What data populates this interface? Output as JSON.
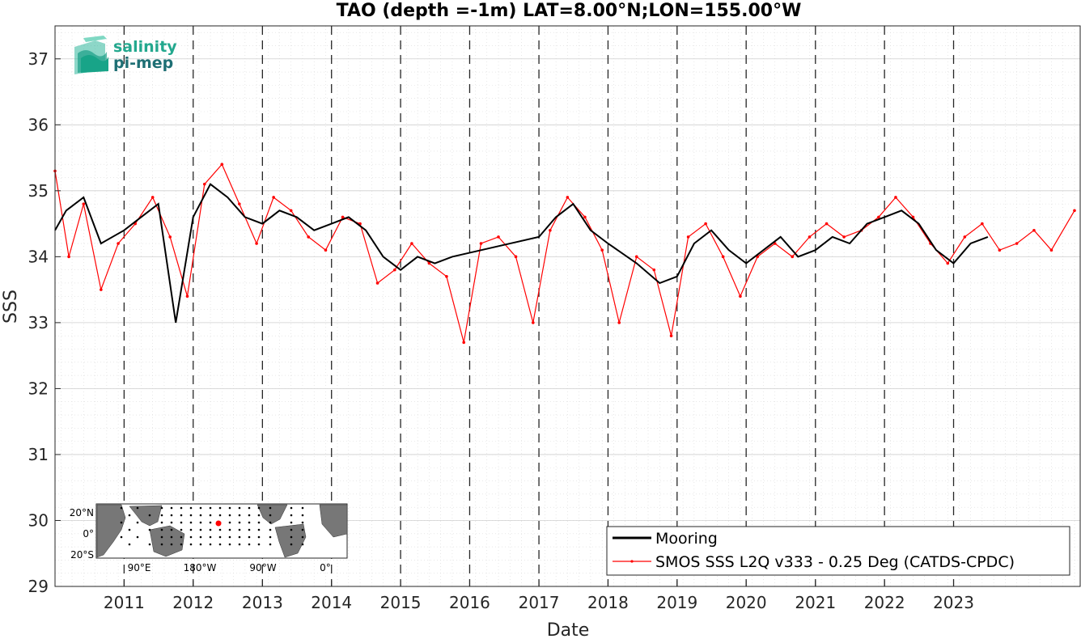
{
  "chart_data": {
    "type": "line",
    "title": "TAO (depth =-1m) LAT=8.00°N;LON=155.00°W",
    "xlabel": "Date",
    "ylabel": "SSS",
    "xlim": [
      "2010-01-01",
      "2024-10-31"
    ],
    "ylim": [
      29,
      37.5
    ],
    "x_ticks": [
      "2011",
      "2012",
      "2013",
      "2014",
      "2015",
      "2016",
      "2017",
      "2018",
      "2019",
      "2020",
      "2021",
      "2022",
      "2023"
    ],
    "y_ticks": [
      29,
      30,
      31,
      32,
      33,
      34,
      35,
      36,
      37
    ],
    "grid": true,
    "year_boundary_lines": "dashed",
    "legend_position": "bottom-right",
    "series": [
      {
        "name": "Mooring",
        "color": "#000000",
        "values": [
          [
            "2010-01-01",
            34.4
          ],
          [
            "2010-03-01",
            34.7
          ],
          [
            "2010-06-01",
            34.9
          ],
          [
            "2010-09-01",
            34.2
          ],
          [
            "2011-01-01",
            34.4
          ],
          [
            "2011-04-01",
            34.6
          ],
          [
            "2011-07-01",
            34.8
          ],
          [
            "2011-10-01",
            33.0
          ],
          [
            "2012-01-01",
            34.6
          ],
          [
            "2012-04-01",
            35.1
          ],
          [
            "2012-07-01",
            34.9
          ],
          [
            "2012-10-01",
            34.6
          ],
          [
            "2013-01-01",
            34.5
          ],
          [
            "2013-04-01",
            34.7
          ],
          [
            "2013-07-01",
            34.6
          ],
          [
            "2013-10-01",
            34.4
          ],
          [
            "2014-01-01",
            34.5
          ],
          [
            "2014-04-01",
            34.6
          ],
          [
            "2014-07-01",
            34.4
          ],
          [
            "2014-10-01",
            34.0
          ],
          [
            "2015-01-01",
            33.8
          ],
          [
            "2015-04-01",
            34.0
          ],
          [
            "2015-07-01",
            33.9
          ],
          [
            "2015-10-01",
            34.0
          ],
          [
            "2017-01-01",
            34.3
          ],
          [
            "2017-04-01",
            34.6
          ],
          [
            "2017-07-01",
            34.8
          ],
          [
            "2017-10-01",
            34.4
          ],
          [
            "2018-01-01",
            34.2
          ],
          [
            "2018-06-01",
            33.9
          ],
          [
            "2018-10-01",
            33.6
          ],
          [
            "2019-01-01",
            33.7
          ],
          [
            "2019-04-01",
            34.2
          ],
          [
            "2019-07-01",
            34.4
          ],
          [
            "2019-10-01",
            34.1
          ],
          [
            "2020-01-01",
            33.9
          ],
          [
            "2020-04-01",
            34.1
          ],
          [
            "2020-07-01",
            34.3
          ],
          [
            "2020-10-01",
            34.0
          ],
          [
            "2021-01-01",
            34.1
          ],
          [
            "2021-04-01",
            34.3
          ],
          [
            "2021-07-01",
            34.2
          ],
          [
            "2021-10-01",
            34.5
          ],
          [
            "2022-01-01",
            34.6
          ],
          [
            "2022-04-01",
            34.7
          ],
          [
            "2022-07-01",
            34.5
          ],
          [
            "2022-10-01",
            34.1
          ],
          [
            "2023-01-01",
            33.9
          ],
          [
            "2023-04-01",
            34.2
          ],
          [
            "2023-07-01",
            34.3
          ]
        ]
      },
      {
        "name": "SMOS SSS L2Q v333 - 0.25 Deg (CATDS-CPDC)",
        "color": "#ff0000",
        "values": [
          [
            "2010-01-01",
            35.3
          ],
          [
            "2010-03-15",
            34.0
          ],
          [
            "2010-06-01",
            34.8
          ],
          [
            "2010-09-01",
            33.5
          ],
          [
            "2010-12-01",
            34.2
          ],
          [
            "2011-03-01",
            34.5
          ],
          [
            "2011-06-01",
            34.9
          ],
          [
            "2011-09-01",
            34.3
          ],
          [
            "2011-12-01",
            33.4
          ],
          [
            "2012-03-01",
            35.1
          ],
          [
            "2012-06-01",
            35.4
          ],
          [
            "2012-09-01",
            34.8
          ],
          [
            "2012-12-01",
            34.2
          ],
          [
            "2013-03-01",
            34.9
          ],
          [
            "2013-06-01",
            34.7
          ],
          [
            "2013-09-01",
            34.3
          ],
          [
            "2013-12-01",
            34.1
          ],
          [
            "2014-03-01",
            34.6
          ],
          [
            "2014-06-01",
            34.5
          ],
          [
            "2014-09-01",
            33.6
          ],
          [
            "2014-12-01",
            33.8
          ],
          [
            "2015-03-01",
            34.2
          ],
          [
            "2015-06-01",
            33.9
          ],
          [
            "2015-09-01",
            33.7
          ],
          [
            "2015-12-01",
            32.7
          ],
          [
            "2016-03-01",
            34.2
          ],
          [
            "2016-06-01",
            34.3
          ],
          [
            "2016-09-01",
            34.0
          ],
          [
            "2016-12-01",
            33.0
          ],
          [
            "2017-03-01",
            34.4
          ],
          [
            "2017-06-01",
            34.9
          ],
          [
            "2017-09-01",
            34.6
          ],
          [
            "2017-12-01",
            34.1
          ],
          [
            "2018-03-01",
            33.0
          ],
          [
            "2018-06-01",
            34.0
          ],
          [
            "2018-09-01",
            33.8
          ],
          [
            "2018-12-01",
            32.8
          ],
          [
            "2019-03-01",
            34.3
          ],
          [
            "2019-06-01",
            34.5
          ],
          [
            "2019-09-01",
            34.0
          ],
          [
            "2019-12-01",
            33.4
          ],
          [
            "2020-03-01",
            34.0
          ],
          [
            "2020-06-01",
            34.2
          ],
          [
            "2020-09-01",
            34.0
          ],
          [
            "2020-12-01",
            34.3
          ],
          [
            "2021-03-01",
            34.5
          ],
          [
            "2021-06-01",
            34.3
          ],
          [
            "2021-09-01",
            34.4
          ],
          [
            "2021-12-01",
            34.6
          ],
          [
            "2022-03-01",
            34.9
          ],
          [
            "2022-06-01",
            34.6
          ],
          [
            "2022-09-01",
            34.2
          ],
          [
            "2022-12-01",
            33.9
          ],
          [
            "2023-03-01",
            34.3
          ],
          [
            "2023-06-01",
            34.5
          ],
          [
            "2023-09-01",
            34.1
          ],
          [
            "2023-12-01",
            34.2
          ],
          [
            "2024-03-01",
            34.4
          ],
          [
            "2024-06-01",
            34.1
          ],
          [
            "2024-10-01",
            34.7
          ]
        ]
      }
    ]
  },
  "logo": {
    "line1": "salinity",
    "line2": "pi-mep"
  },
  "inset_map": {
    "lat_labels": [
      "20°N",
      "0°",
      "20°S"
    ],
    "lon_labels": [
      "90°E",
      "180°W",
      "90°W",
      "0°"
    ],
    "marker_color": "#ff0000"
  },
  "legend": {
    "mooring_label": "Mooring",
    "smos_label": "SMOS SSS L2Q v333 - 0.25 Deg (CATDS-CPDC)"
  }
}
